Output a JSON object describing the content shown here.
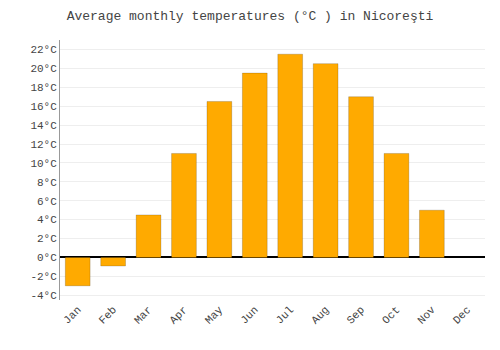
{
  "chart_data": {
    "type": "bar",
    "title": "Average monthly temperatures (°C ) in Nicoreşti",
    "categories": [
      "Jan",
      "Feb",
      "Mar",
      "Apr",
      "May",
      "Jun",
      "Jul",
      "Aug",
      "Sep",
      "Oct",
      "Nov",
      "Dec"
    ],
    "values": [
      -3.0,
      -0.9,
      4.5,
      11.0,
      16.5,
      19.5,
      21.5,
      20.5,
      17.0,
      11.0,
      5.0,
      0.0
    ],
    "color": "#FFAA00",
    "ylim": [
      -4.5,
      23
    ],
    "yticks": [
      {
        "value": -4,
        "label": "-4°C"
      },
      {
        "value": -2,
        "label": "-2°C"
      },
      {
        "value": 0,
        "label": "0°C"
      },
      {
        "value": 2,
        "label": "2°C"
      },
      {
        "value": 4,
        "label": "4°C"
      },
      {
        "value": 6,
        "label": "6°C"
      },
      {
        "value": 8,
        "label": "8°C"
      },
      {
        "value": 10,
        "label": "10°C"
      },
      {
        "value": 12,
        "label": "12°C"
      },
      {
        "value": 14,
        "label": "14°C"
      },
      {
        "value": 16,
        "label": "16°C"
      },
      {
        "value": 18,
        "label": "18°C"
      },
      {
        "value": 20,
        "label": "20°C"
      },
      {
        "value": 22,
        "label": "22°C"
      }
    ],
    "grid": true
  }
}
